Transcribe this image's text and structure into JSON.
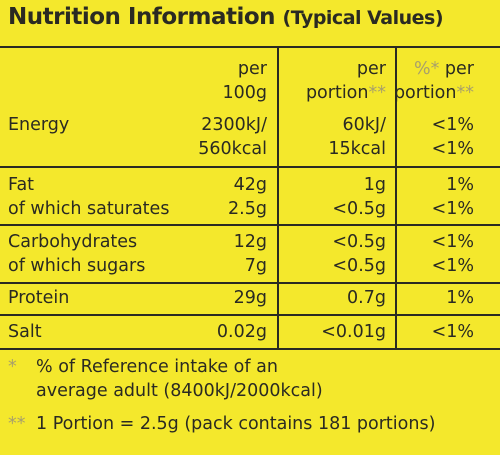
{
  "title": "Nutrition Information",
  "subtitle": "(Typical Values)",
  "columns": {
    "per100_line1": "per",
    "per100_line2": "100g",
    "portion_line1": "per",
    "portion_line2": "portion",
    "portion_mark": "**",
    "pct_line1_mark": "%*",
    "pct_line1": " per",
    "pct_line2": "portion",
    "pct_mark": "**"
  },
  "rows": {
    "energy": {
      "label": "Energy",
      "per100_a": "2300kJ/",
      "per100_b": "560kcal",
      "portion_a": "60kJ/",
      "portion_b": "15kcal",
      "pct_a": "<1%",
      "pct_b": "<1%"
    },
    "fat": {
      "label": "Fat",
      "per100": "42g",
      "portion": "1g",
      "pct": "1%"
    },
    "saturates": {
      "label": "of which saturates",
      "per100": "2.5g",
      "portion": "<0.5g",
      "pct": "<1%"
    },
    "carbs": {
      "label": "Carbohydrates",
      "per100": "12g",
      "portion": "<0.5g",
      "pct": "<1%"
    },
    "sugars": {
      "label": "of which sugars",
      "per100": "7g",
      "portion": "<0.5g",
      "pct": "<1%"
    },
    "protein": {
      "label": "Protein",
      "per100": "29g",
      "portion": "0.7g",
      "pct": "1%"
    },
    "salt": {
      "label": "Salt",
      "per100": "0.02g",
      "portion": "<0.01g",
      "pct": "<1%"
    }
  },
  "footnotes": {
    "f1_mark": "*",
    "f1_line1": "% of Reference intake of an",
    "f1_line2": "average adult (8400kJ/2000kcal)",
    "f2_mark": "**",
    "f2_text": "1 Portion = 2.5g (pack contains 181 portions)"
  }
}
